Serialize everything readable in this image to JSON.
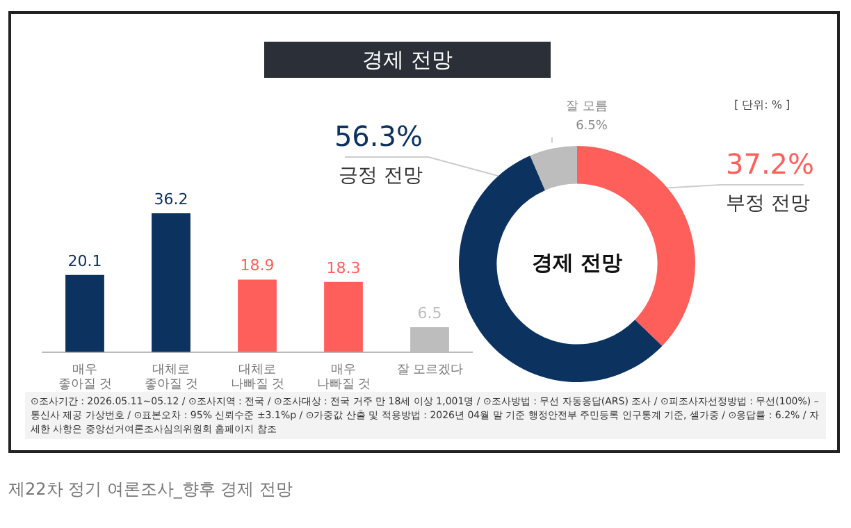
{
  "chart_data": [
    {
      "type": "bar",
      "title": "경제 전망",
      "categories": [
        "매우\n좋아질 것",
        "대체로\n좋아질 것",
        "대체로\n나빠질 것",
        "매우\n나빠질 것",
        "잘 모르겠다"
      ],
      "values": [
        20.1,
        36.2,
        18.9,
        18.3,
        6.5
      ],
      "colors": [
        "#0c3260",
        "#0c3260",
        "#ff5f5a",
        "#ff5f5a",
        "#bdbdbd"
      ],
      "data_labels": true,
      "tick_labels": "x",
      "grid": false,
      "legend": false,
      "annotations": [
        "⊙조사기간 : 2026.05.11~05.12 / ⊙조사지역 : 전국 / ⊙조사대상 : 전국 거주 만 18세 이상 1,001명 / ⊙조사방법 : 무선 자동응답(ARS) 조사 / ⊙피조사자선정방법 : 무선(100%) – 통신사 제공 가상번호 / ⊙표본오차 : 95% 신뢰수준 ±3.1%p / ⊙가중값 산출 및 적용방법 : 2026년 04월 말 기준 행정안전부 주민등록 인구통계 기준, 셀가중 / ⊙응답률 : 6.2% / 자세한 사항은 중앙선거여론조사심의위원회 홈페이지 참조",
        "제22차 정기 여론조사_향후 경제 전망"
      ]
    },
    {
      "type": "donut",
      "title": "경제 전망",
      "categories": [
        "부정 전망",
        "긍정 전망",
        "잘 모름"
      ],
      "values": [
        37.2,
        56.3,
        6.5
      ],
      "colors": [
        "#ff5f5a",
        "#0c3260",
        "#bdbdbd"
      ],
      "value_labels": [
        "37.2%",
        "56.3%",
        "6.5%"
      ],
      "legend": false,
      "annotations": [
        "[ 단위: % ]"
      ]
    }
  ]
}
